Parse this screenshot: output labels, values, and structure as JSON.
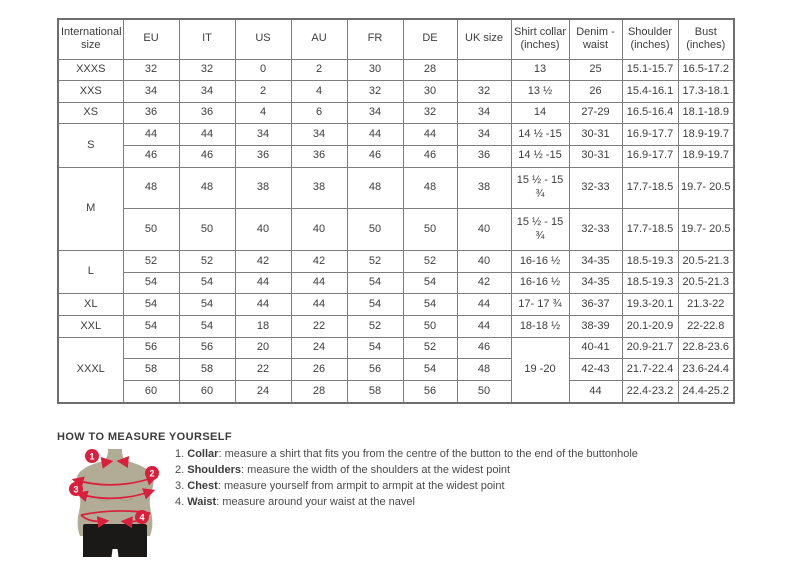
{
  "table": {
    "headers": [
      "International size",
      "EU",
      "IT",
      "US",
      "AU",
      "FR",
      "DE",
      "UK size",
      "Shirt collar (inches)",
      "Denim - waist",
      "Shoulder (inches)",
      "Bust (inches)"
    ],
    "rows": [
      {
        "label": "XXXS",
        "labelspan": 1,
        "cells": [
          "32",
          "32",
          "0",
          "2",
          "30",
          "28",
          "",
          "13",
          "25",
          "15.1-15.7",
          "16.5-17.2"
        ]
      },
      {
        "label": "XXS",
        "labelspan": 1,
        "cells": [
          "34",
          "34",
          "2",
          "4",
          "32",
          "30",
          "32",
          "13 ½",
          "26",
          "15.4-16.1",
          "17.3-18.1"
        ]
      },
      {
        "label": "XS",
        "labelspan": 1,
        "cells": [
          "36",
          "36",
          "4",
          "6",
          "34",
          "32",
          "34",
          "14",
          "27-29",
          "16.5-16.4",
          "18.1-18.9"
        ]
      },
      {
        "label": "S",
        "labelspan": 2,
        "cells": [
          "44",
          "44",
          "34",
          "34",
          "44",
          "44",
          "34",
          "14 ½ -15",
          "30-31",
          "16.9-17.7",
          "18.9-19.7"
        ]
      },
      {
        "cells": [
          "46",
          "46",
          "36",
          "36",
          "46",
          "46",
          "36",
          "14 ½ -15",
          "30-31",
          "16.9-17.7",
          "18.9-19.7"
        ]
      },
      {
        "label": "M",
        "labelspan": 2,
        "cells": [
          "48",
          "48",
          "38",
          "38",
          "48",
          "48",
          "38",
          "15 ½ - 15 ¾",
          "32-33",
          "17.7-18.5",
          "19.7- 20.5"
        ]
      },
      {
        "cells": [
          "50",
          "50",
          "40",
          "40",
          "50",
          "50",
          "40",
          "15 ½ - 15 ¾",
          "32-33",
          "17.7-18.5",
          "19.7- 20.5"
        ]
      },
      {
        "label": "L",
        "labelspan": 2,
        "cells": [
          "52",
          "52",
          "42",
          "42",
          "52",
          "52",
          "40",
          "16-16 ½",
          "34-35",
          "18.5-19.3",
          "20.5-21.3"
        ]
      },
      {
        "cells": [
          "54",
          "54",
          "44",
          "44",
          "54",
          "54",
          "42",
          "16-16 ½",
          "34-35",
          "18.5-19.3",
          "20.5-21.3"
        ]
      },
      {
        "label": "XL",
        "labelspan": 1,
        "cells": [
          "54",
          "54",
          "44",
          "44",
          "54",
          "54",
          "44",
          "17- 17 ¾",
          "36-37",
          "19.3-20.1",
          "21.3-22"
        ]
      },
      {
        "label": "XXL",
        "labelspan": 1,
        "cells": [
          "54",
          "54",
          "18",
          "22",
          "52",
          "50",
          "44",
          "18-18 ½",
          "38-39",
          "20.1-20.9",
          "22-22.8"
        ]
      },
      {
        "label": "XXXL",
        "labelspan": 3,
        "cells": [
          "56",
          "56",
          "20",
          "24",
          "54",
          "52",
          "46",
          {
            "text": "19 -20",
            "rowspan": 3
          },
          "40-41",
          "20.9-21.7",
          "22.8-23.6"
        ]
      },
      {
        "cells": [
          "58",
          "58",
          "22",
          "26",
          "56",
          "54",
          "48",
          "42-43",
          "21.7-22.4",
          "23.6-24.4"
        ]
      },
      {
        "cells": [
          "60",
          "60",
          "24",
          "28",
          "58",
          "56",
          "50",
          "44",
          "22.4-23.2",
          "24.4-25.2"
        ]
      }
    ]
  },
  "measure": {
    "title": "HOW TO MEASURE YOURSELF",
    "steps": [
      {
        "num": "1.",
        "label": "Collar",
        "text": "measure a shirt that fits you from the centre of the button to the end of the buttonhole"
      },
      {
        "num": "2.",
        "label": "Shoulders",
        "text": "measure the width of the shoulders at the widest point"
      },
      {
        "num": "3.",
        "label": "Chest",
        "text": "measure yourself from armpit to armpit at the widest point"
      },
      {
        "num": "4.",
        "label": "Waist",
        "text": "measure around your waist at the navel"
      }
    ]
  },
  "figure": {
    "badges": [
      "1",
      "2",
      "3",
      "4"
    ]
  },
  "colors": {
    "accent_red": "#d91f3c",
    "mannequin_tan": "#b2ac96",
    "mannequin_shade": "#9d987f",
    "pants_black": "#1b1917",
    "table_border": "#7e7e7e",
    "text": "#3d3d3d"
  }
}
